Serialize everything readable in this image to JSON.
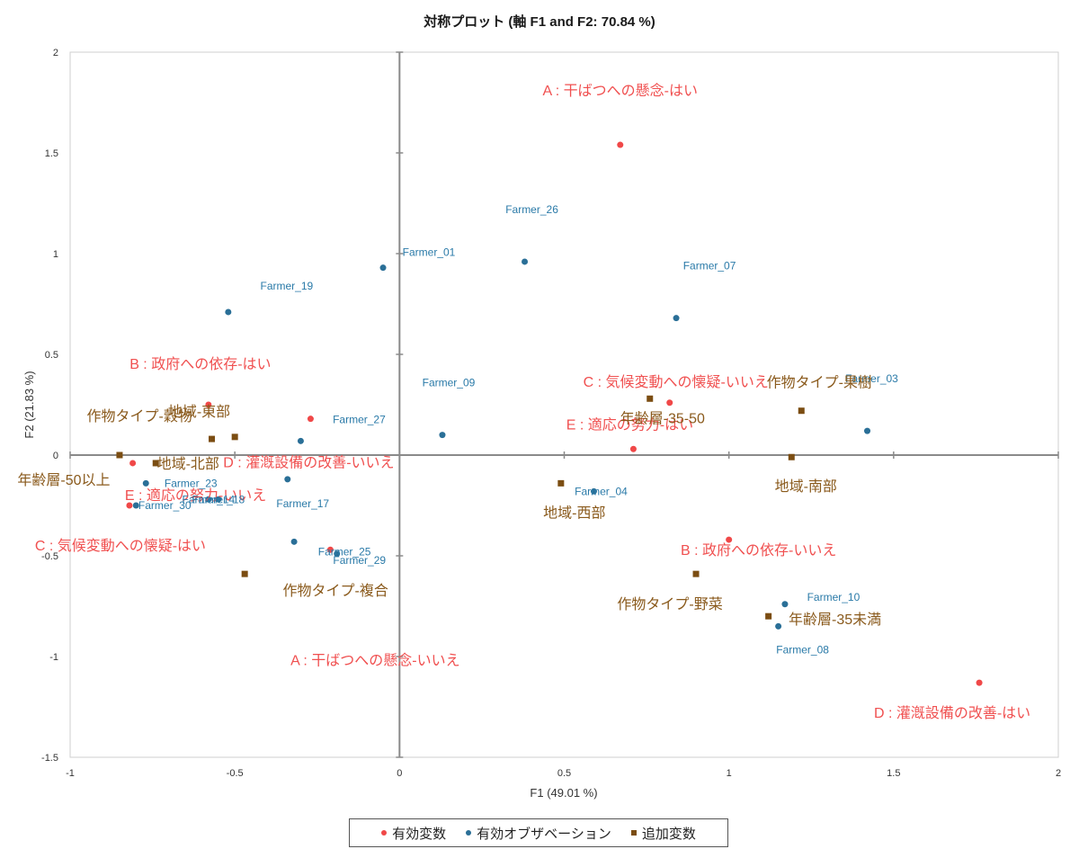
{
  "chart_data": {
    "type": "scatter",
    "title": "対称プロット (軸 F1 and F2: 70.84 %)",
    "xlabel": "F1 (49.01 %)",
    "ylabel": "F2 (21.83 %)",
    "xlim": [
      -1,
      2
    ],
    "ylim": [
      -1.5,
      2
    ],
    "xticks": [
      "-1",
      "-0.5",
      "0",
      "0.5",
      "1",
      "1.5",
      "2"
    ],
    "yticks": [
      "-1.5",
      "-1",
      "-0.5",
      "0",
      "0.5",
      "1",
      "1.5",
      "2"
    ],
    "grid": false,
    "legend_position": "bottom",
    "series": [
      {
        "name": "有効変数",
        "color": "#f04848",
        "label_color": "#f05050",
        "marker": "circle",
        "points": [
          {
            "label": "A : 干ばつへの懸念-はい",
            "x": 0.67,
            "y": 1.54
          },
          {
            "label": "A : 干ばつへの懸念-いいえ",
            "x": -0.21,
            "y": -0.47
          },
          {
            "label": "B : 政府への依存-はい",
            "x": -0.58,
            "y": 0.25
          },
          {
            "label": "B : 政府への依存-いいえ",
            "x": 1.0,
            "y": -0.42
          },
          {
            "label": "C : 気候変動への懐疑-いいえ",
            "x": 0.82,
            "y": 0.26
          },
          {
            "label": "C : 気候変動への懐疑-はい",
            "x": -0.82,
            "y": -0.25
          },
          {
            "label": "D : 灌漑設備の改善-いいえ",
            "x": -0.27,
            "y": 0.18
          },
          {
            "label": "D : 灌漑設備の改善-はい",
            "x": 1.76,
            "y": -1.13
          },
          {
            "label": "E : 適応の努力-はい",
            "x": 0.71,
            "y": 0.03
          },
          {
            "label": "E : 適応の努力-いいえ",
            "x": -0.81,
            "y": -0.04
          }
        ]
      },
      {
        "name": "有効オブザベーション",
        "color": "#2a6f97",
        "label_color": "#2a7aa8",
        "marker": "circle",
        "points": [
          {
            "label": "Farmer_01",
            "x": -0.05,
            "y": 0.93
          },
          {
            "label": "Farmer_26",
            "x": 0.38,
            "y": 0.96
          },
          {
            "label": "Farmer_07",
            "x": 0.84,
            "y": 0.68
          },
          {
            "label": "Farmer_19",
            "x": -0.52,
            "y": 0.71
          },
          {
            "label": "Farmer_09",
            "x": 0.13,
            "y": 0.1
          },
          {
            "label": "Farmer_03",
            "x": 1.42,
            "y": 0.12
          },
          {
            "label": "Farmer_27",
            "x": -0.3,
            "y": 0.07
          },
          {
            "label": "Farmer_23",
            "x": -0.77,
            "y": -0.14
          },
          {
            "label": "Farmer_30",
            "x": -0.8,
            "y": -0.25
          },
          {
            "label": "Farmer_14",
            "x": -0.58,
            "y": -0.22
          },
          {
            "label": "Farmer_18",
            "x": -0.55,
            "y": -0.22
          },
          {
            "label": "Farmer_17",
            "x": -0.34,
            "y": -0.12
          },
          {
            "label": "Farmer_25",
            "x": -0.32,
            "y": -0.43
          },
          {
            "label": "Farmer_29",
            "x": -0.19,
            "y": -0.49
          },
          {
            "label": "Farmer_04",
            "x": 0.59,
            "y": -0.18
          },
          {
            "label": "Farmer_10",
            "x": 1.17,
            "y": -0.74
          },
          {
            "label": "Farmer_08",
            "x": 1.15,
            "y": -0.85
          }
        ]
      },
      {
        "name": "追加変数",
        "color": "#7b4d12",
        "label_color": "#8a5a1c",
        "marker": "square",
        "points": [
          {
            "label": "年齢層-35-50",
            "x": 0.76,
            "y": 0.28
          },
          {
            "label": "作物タイプ-果樹",
            "x": 1.22,
            "y": 0.22
          },
          {
            "label": "作物タイプ-穀物",
            "x": -0.57,
            "y": 0.08
          },
          {
            "label": "地域-東部",
            "x": -0.5,
            "y": 0.09
          },
          {
            "label": "地域-北部",
            "x": -0.74,
            "y": -0.04
          },
          {
            "label": "年齢層-50以上",
            "x": -0.85,
            "y": 0.0
          },
          {
            "label": "地域-南部",
            "x": 1.19,
            "y": -0.01
          },
          {
            "label": "地域-西部",
            "x": 0.49,
            "y": -0.14
          },
          {
            "label": "作物タイプ-野菜",
            "x": 0.9,
            "y": -0.59
          },
          {
            "label": "年齢層-35未満",
            "x": 1.12,
            "y": -0.8
          },
          {
            "label": "作物タイプ-複合",
            "x": -0.47,
            "y": -0.59
          }
        ]
      }
    ]
  }
}
